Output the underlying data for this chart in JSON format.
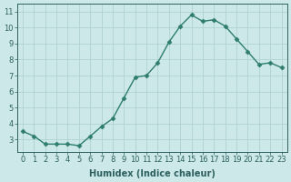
{
  "x": [
    0,
    1,
    2,
    3,
    4,
    5,
    6,
    7,
    8,
    9,
    10,
    11,
    12,
    13,
    14,
    15,
    16,
    17,
    18,
    19,
    20,
    21,
    22,
    23
  ],
  "y": [
    3.5,
    3.2,
    2.7,
    2.7,
    2.7,
    2.6,
    3.2,
    3.8,
    4.3,
    5.6,
    6.9,
    7.0,
    7.8,
    9.1,
    10.1,
    10.8,
    10.4,
    10.5,
    10.1,
    9.3,
    8.5,
    7.7,
    7.8,
    7.5
  ],
  "line_color": "#2e7d6e",
  "marker": "D",
  "marker_size": 2.5,
  "bg_color": "#cce8e8",
  "grid_color": "#aacece",
  "xlabel": "Humidex (Indice chaleur)",
  "xlim": [
    -0.5,
    23.5
  ],
  "ylim": [
    2.2,
    11.5
  ],
  "yticks": [
    3,
    4,
    5,
    6,
    7,
    8,
    9,
    10,
    11
  ],
  "xticks": [
    0,
    1,
    2,
    3,
    4,
    5,
    6,
    7,
    8,
    9,
    10,
    11,
    12,
    13,
    14,
    15,
    16,
    17,
    18,
    19,
    20,
    21,
    22,
    23
  ],
  "tick_color": "#2e6060",
  "label_color": "#2e6060",
  "xlabel_fontsize": 7,
  "tick_fontsize": 6.0,
  "linewidth": 1.0
}
